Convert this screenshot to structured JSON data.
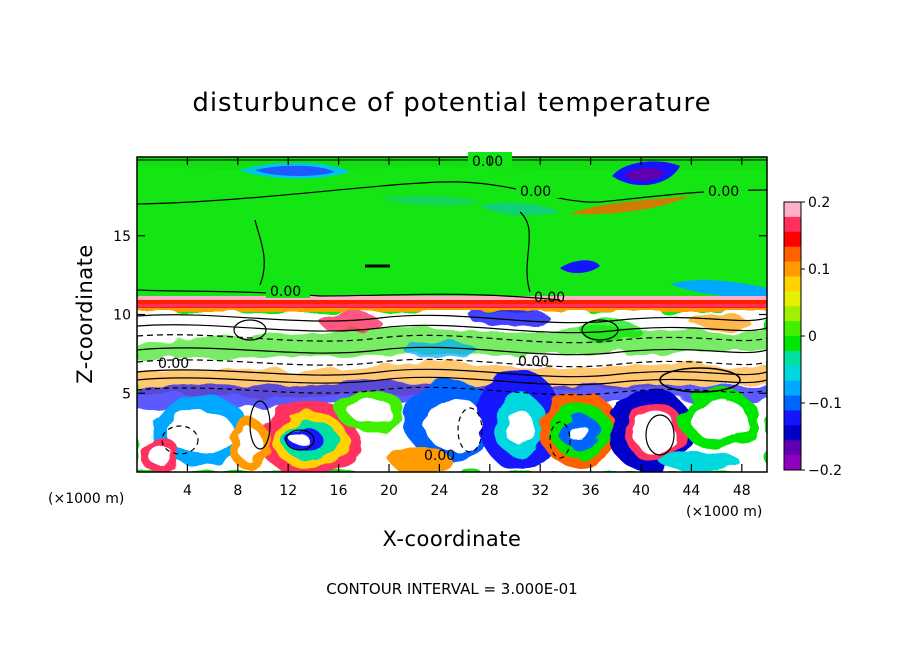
{
  "chart_data": {
    "type": "heatmap",
    "title": "disturbunce of potential temperature",
    "xlabel": "X-coordinate",
    "ylabel": "Z-coordinate",
    "x_unit": "(×1000 m)",
    "z_unit": "(×1000 m)",
    "xlim": [
      0,
      50
    ],
    "ylim": [
      0,
      20
    ],
    "x_ticks": [
      4,
      8,
      12,
      16,
      20,
      24,
      28,
      32,
      36,
      40,
      44,
      48
    ],
    "y_ticks": [
      5,
      10,
      15
    ],
    "colorbar": {
      "range": [
        -0.2,
        0.2
      ],
      "tick_values": [
        0.2,
        0.1,
        0,
        -0.1,
        -0.2
      ],
      "tick_labels": [
        "0.2",
        "0.1",
        "0",
        "−0.1",
        "−0.2"
      ],
      "colors": [
        "#ffb0c8",
        "#ff3060",
        "#ff0000",
        "#ff6000",
        "#ff9a00",
        "#ffd200",
        "#e6f000",
        "#a0f000",
        "#40f000",
        "#00e600",
        "#00e0a0",
        "#00d8e0",
        "#00a8ff",
        "#0064ff",
        "#1414ff",
        "#0000c8",
        "#6000b0",
        "#9000c0"
      ]
    },
    "contour_labels": [
      "0.00",
      "0.00",
      "0.00",
      "0.00",
      "0.00",
      "0.00",
      "0.00",
      "0.00"
    ],
    "contour_interval_text": "CONTOUR INTERVAL = 3.000E-01"
  }
}
